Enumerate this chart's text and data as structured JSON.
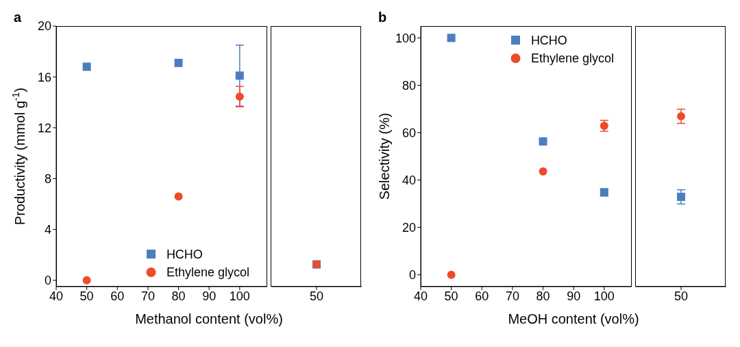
{
  "chart_data": [
    {
      "type": "scatter",
      "title": "a",
      "xlabel": "Methanol content (vol%)",
      "ylabel": "Productivity (mmol g$^{-1}$)",
      "x": [
        50,
        80,
        100
      ],
      "series": [
        {
          "name": "HCHO",
          "color": "#4a7ebf",
          "marker": "square",
          "values": [
            16.8,
            17.1,
            16.1
          ],
          "errors": [
            null,
            null,
            2.4
          ]
        },
        {
          "name": "Ethylene glycol",
          "color": "#ee4b2b",
          "marker": "circle",
          "values": [
            0,
            6.6,
            14.45
          ],
          "errors": [
            null,
            null,
            0.8
          ]
        }
      ],
      "xlim": [
        40,
        109
      ],
      "xticks": [
        40,
        50,
        60,
        70,
        80,
        90,
        100
      ],
      "ylim": [
        -0.5,
        20
      ],
      "yticks": [
        0,
        4,
        8,
        12,
        16,
        20
      ],
      "legend": "bottom"
    },
    {
      "type": "scatter",
      "categories": [
        "50"
      ],
      "series": [
        {
          "color": "#4a7ebf",
          "marker": "square",
          "values": [
            1.25
          ]
        },
        {
          "color": "#ee4b2b",
          "marker": "circle",
          "values": [
            1.25
          ]
        }
      ],
      "ylim": [
        -0.5,
        20
      ],
      "tick_labels": "x"
    },
    {
      "type": "scatter",
      "title": "b",
      "xlabel": "MeOH content (vol%)",
      "ylabel": "Selectivity (%)",
      "x": [
        50,
        80,
        100
      ],
      "series": [
        {
          "name": "HCHO",
          "color": "#4a7ebf",
          "marker": "square",
          "values": [
            100,
            56.3,
            34.8
          ],
          "errors": [
            null,
            null,
            1.5
          ]
        },
        {
          "name": "Ethylene glycol",
          "color": "#ee4b2b",
          "marker": "circle",
          "values": [
            0,
            43.6,
            62.9
          ],
          "errors": [
            null,
            null,
            2.3
          ]
        }
      ],
      "xlim": [
        40,
        109
      ],
      "xticks": [
        40,
        50,
        60,
        70,
        80,
        90,
        100
      ],
      "ylim": [
        -5,
        105
      ],
      "yticks": [
        0,
        20,
        40,
        60,
        80,
        100
      ],
      "legend": "top"
    },
    {
      "type": "scatter",
      "categories": [
        "50"
      ],
      "series": [
        {
          "color": "#4a7ebf",
          "marker": "square",
          "values": [
            32.9
          ],
          "errors": [
            3
          ]
        },
        {
          "color": "#ee4b2b",
          "marker": "circle",
          "values": [
            66.9
          ],
          "errors": [
            3
          ]
        }
      ],
      "ylim": [
        -5,
        105
      ],
      "tick_labels": "x"
    }
  ]
}
